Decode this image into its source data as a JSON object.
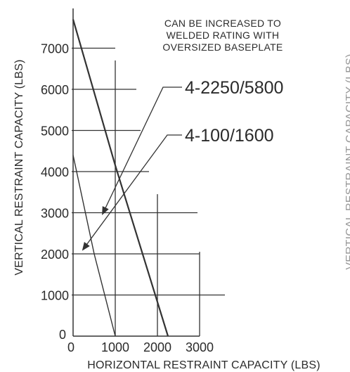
{
  "chart_data": {
    "type": "line",
    "title": "",
    "xlabel": "HORIZONTAL RESTRAINT CAPACITY (LBS)",
    "ylabel": "VERTICAL RESTRAINT CAPACITY (LBS)",
    "xlim": [
      0,
      3000
    ],
    "ylim": [
      0,
      7000
    ],
    "x_ticks": [
      "0",
      "1000",
      "2000",
      "3000"
    ],
    "y_ticks": [
      "0",
      "1000",
      "2000",
      "3000",
      "4000",
      "5000",
      "6000",
      "7000"
    ],
    "y_tick_values": [
      0,
      1000,
      2000,
      3000,
      4000,
      5000,
      6000,
      7000
    ],
    "x_tick_values": [
      0,
      1000,
      2000,
      3000
    ],
    "grid": true,
    "annotation": "CAN BE INCREASED TO WELDED RATING WITH OVERSIZED BASEPLATE",
    "annotation_lines": [
      "CAN BE INCREASED TO",
      "WELDED RATING WITH",
      "OVERSIZED BASEPLATE"
    ],
    "clipped_right_axis_text": "VERTICAL RESTRAINT CAPACITY (LBS)",
    "series": [
      {
        "name": "4-2250/5800",
        "points": [
          {
            "x": 0,
            "y": 7700
          },
          {
            "x": 1000,
            "y": 4150
          },
          {
            "x": 2250,
            "y": 0
          }
        ]
      },
      {
        "name": "4-100/1600",
        "points": [
          {
            "x": 0,
            "y": 4400
          },
          {
            "x": 500,
            "y": 2000
          },
          {
            "x": 1000,
            "y": 0
          }
        ]
      }
    ],
    "staircase_grid": [
      {
        "y": 0,
        "x_end": 3000
      },
      {
        "y": 1000,
        "x_end": 3600
      },
      {
        "y": 2000,
        "x_end": 3000
      },
      {
        "y": 3000,
        "x_end": 2950
      },
      {
        "y": 4000,
        "x_end": 1800
      },
      {
        "y": 5000,
        "x_end": 1600
      },
      {
        "y": 6000,
        "x_end": 1500
      },
      {
        "y": 7000,
        "x_end": 1000
      }
    ],
    "vertical_grid": [
      {
        "x": 1000,
        "y_top": 6700
      },
      {
        "x": 2000,
        "y_top": 3450
      },
      {
        "x": 3000,
        "y_top": 2050
      }
    ]
  }
}
